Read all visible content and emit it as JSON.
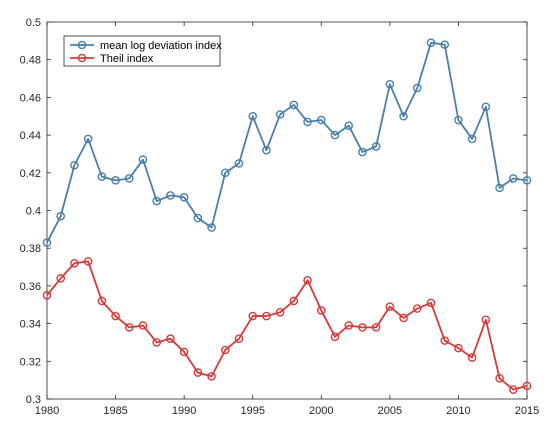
{
  "chart_data": {
    "type": "line",
    "x": [
      1980,
      1981,
      1982,
      1983,
      1984,
      1985,
      1986,
      1987,
      1988,
      1989,
      1990,
      1991,
      1992,
      1993,
      1994,
      1995,
      1996,
      1997,
      1998,
      1999,
      2000,
      2001,
      2002,
      2003,
      2004,
      2005,
      2006,
      2007,
      2008,
      2009,
      2010,
      2011,
      2012,
      2013,
      2014,
      2015
    ],
    "xlim": [
      1980,
      2015
    ],
    "ylim": [
      0.3,
      0.5
    ],
    "xticks": [
      1980,
      1985,
      1990,
      1995,
      2000,
      2005,
      2010,
      2015
    ],
    "yticks": [
      0.3,
      0.32,
      0.34,
      0.36,
      0.38,
      0.4,
      0.42,
      0.44,
      0.46,
      0.48,
      0.5
    ],
    "xtick_labels": [
      "1980",
      "1985",
      "1990",
      "1995",
      "2000",
      "2005",
      "2010",
      "2015"
    ],
    "ytick_labels": [
      "0.3",
      "0.32",
      "0.34",
      "0.36",
      "0.38",
      "0.4",
      "0.42",
      "0.44",
      "0.46",
      "0.48",
      "0.5"
    ],
    "legend_position": "top-left",
    "grid": false,
    "series": [
      {
        "name": "mean log deviation index",
        "color": "#4a7fa8",
        "marker": "circle",
        "values": [
          0.383,
          0.397,
          0.424,
          0.438,
          0.418,
          0.416,
          0.417,
          0.427,
          0.405,
          0.408,
          0.407,
          0.396,
          0.391,
          0.42,
          0.425,
          0.45,
          0.432,
          0.451,
          0.456,
          0.447,
          0.448,
          0.44,
          0.445,
          0.431,
          0.434,
          0.467,
          0.45,
          0.465,
          0.489,
          0.488,
          0.448,
          0.438,
          0.455,
          0.412,
          0.417,
          0.416
        ]
      },
      {
        "name": "Theil index",
        "color": "#d63a3a",
        "marker": "circle",
        "values": [
          0.355,
          0.364,
          0.372,
          0.373,
          0.352,
          0.344,
          0.338,
          0.339,
          0.33,
          0.332,
          0.325,
          0.314,
          0.312,
          0.326,
          0.332,
          0.344,
          0.344,
          0.346,
          0.352,
          0.363,
          0.347,
          0.333,
          0.339,
          0.338,
          0.338,
          0.349,
          0.343,
          0.348,
          0.351,
          0.331,
          0.327,
          0.322,
          0.342,
          0.311,
          0.305,
          0.307
        ]
      }
    ]
  }
}
